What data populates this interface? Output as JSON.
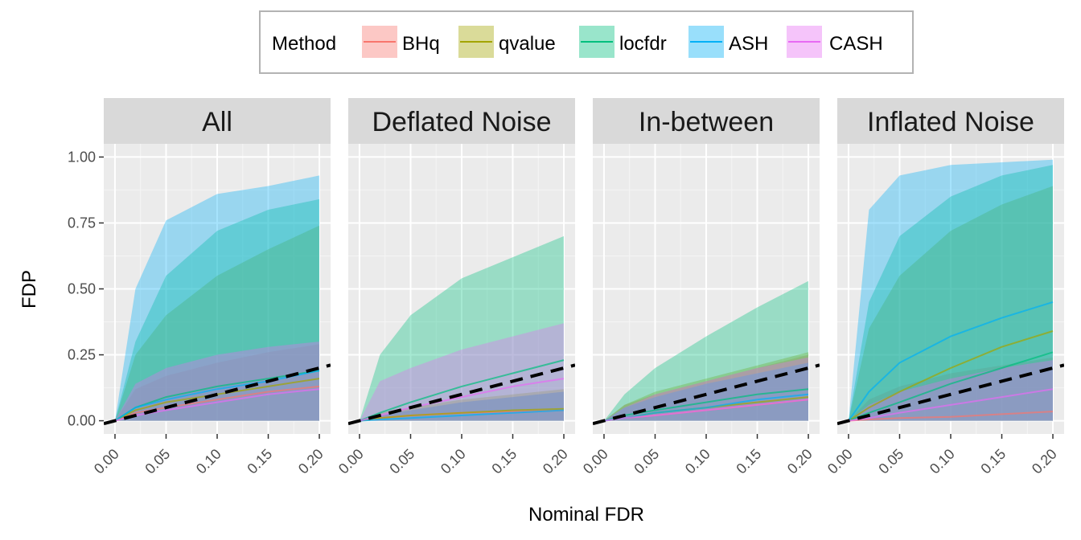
{
  "chart_data": {
    "type": "area",
    "xlabel": "Nominal FDR",
    "ylabel": "FDP",
    "xlim": [
      0,
      0.2
    ],
    "ylim": [
      0,
      1
    ],
    "x_ticks": [
      "0.00",
      "0.05",
      "0.10",
      "0.15",
      "0.20"
    ],
    "y_ticks": [
      "0.00",
      "0.25",
      "0.50",
      "0.75",
      "1.00"
    ],
    "legend": {
      "title": "Method",
      "position": "top",
      "entries": [
        {
          "name": "BHq",
          "color": "#F8766D"
        },
        {
          "name": "qvalue",
          "color": "#A3A500"
        },
        {
          "name": "locfdr",
          "color": "#00BF7D"
        },
        {
          "name": "ASH",
          "color": "#00B0F6"
        },
        {
          "name": "CASH",
          "color": "#E76BF3"
        }
      ]
    },
    "reference_line": {
      "slope": 1,
      "intercept": 0,
      "style": "dashed",
      "color": "#000000"
    },
    "panels": [
      {
        "title": "All",
        "x": [
          0,
          0.02,
          0.05,
          0.1,
          0.15,
          0.2
        ],
        "series": [
          {
            "name": "BHq",
            "mean": [
              0,
              0.03,
              0.05,
              0.08,
              0.11,
              0.13
            ],
            "lower": [
              0,
              0,
              0,
              0,
              0,
              0
            ],
            "upper": [
              0,
              0.12,
              0.17,
              0.22,
              0.26,
              0.29
            ]
          },
          {
            "name": "qvalue",
            "mean": [
              0,
              0.04,
              0.07,
              0.1,
              0.13,
              0.16
            ],
            "lower": [
              0,
              0,
              0,
              0,
              0,
              0
            ],
            "upper": [
              0,
              0.25,
              0.4,
              0.55,
              0.65,
              0.74
            ]
          },
          {
            "name": "locfdr",
            "mean": [
              0,
              0.05,
              0.09,
              0.13,
              0.16,
              0.19
            ],
            "lower": [
              0,
              0,
              0,
              0,
              0,
              0
            ],
            "upper": [
              0,
              0.3,
              0.55,
              0.72,
              0.8,
              0.84
            ]
          },
          {
            "name": "ASH",
            "mean": [
              0,
              0.05,
              0.08,
              0.12,
              0.15,
              0.19
            ],
            "lower": [
              0,
              0,
              0,
              0,
              0,
              0
            ],
            "upper": [
              0,
              0.5,
              0.76,
              0.86,
              0.89,
              0.93
            ]
          },
          {
            "name": "CASH",
            "mean": [
              0,
              0.02,
              0.04,
              0.07,
              0.1,
              0.12
            ],
            "lower": [
              0,
              0,
              0,
              0,
              0,
              0
            ],
            "upper": [
              0,
              0.14,
              0.2,
              0.25,
              0.28,
              0.3
            ]
          }
        ]
      },
      {
        "title": "Deflated Noise",
        "x": [
          0,
          0.02,
          0.05,
          0.1,
          0.15,
          0.2
        ],
        "series": [
          {
            "name": "BHq",
            "mean": [
              0,
              0.01,
              0.02,
              0.03,
              0.035,
              0.04
            ],
            "lower": [
              0,
              0,
              0,
              0,
              0,
              0
            ],
            "upper": [
              0,
              0.02,
              0.04,
              0.07,
              0.09,
              0.11
            ]
          },
          {
            "name": "qvalue",
            "mean": [
              0,
              0.01,
              0.02,
              0.03,
              0.04,
              0.045
            ],
            "lower": [
              0,
              0,
              0,
              0,
              0,
              0
            ],
            "upper": [
              0,
              0.03,
              0.05,
              0.08,
              0.1,
              0.12
            ]
          },
          {
            "name": "locfdr",
            "mean": [
              0,
              0.03,
              0.07,
              0.13,
              0.18,
              0.23
            ],
            "lower": [
              0,
              0,
              0,
              0,
              0,
              0
            ],
            "upper": [
              0,
              0.25,
              0.4,
              0.54,
              0.62,
              0.7
            ]
          },
          {
            "name": "ASH",
            "mean": [
              0,
              0.005,
              0.01,
              0.02,
              0.03,
              0.04
            ],
            "lower": [
              0,
              0,
              0,
              0,
              0,
              0
            ],
            "upper": [
              0,
              0.02,
              0.04,
              0.07,
              0.09,
              0.11
            ]
          },
          {
            "name": "CASH",
            "mean": [
              0,
              0.02,
              0.05,
              0.09,
              0.13,
              0.16
            ],
            "lower": [
              0,
              0,
              0,
              0,
              0,
              0
            ],
            "upper": [
              0,
              0.15,
              0.2,
              0.27,
              0.32,
              0.37
            ]
          }
        ]
      },
      {
        "title": "In-between",
        "x": [
          0,
          0.02,
          0.05,
          0.1,
          0.15,
          0.2
        ],
        "series": [
          {
            "name": "BHq",
            "mean": [
              0,
              0.01,
              0.02,
              0.04,
              0.06,
              0.08
            ],
            "lower": [
              0,
              0,
              0,
              0,
              0,
              0
            ],
            "upper": [
              0,
              0.06,
              0.1,
              0.15,
              0.2,
              0.25
            ]
          },
          {
            "name": "qvalue",
            "mean": [
              0,
              0.01,
              0.03,
              0.05,
              0.07,
              0.09
            ],
            "lower": [
              0,
              0,
              0,
              0,
              0,
              0
            ],
            "upper": [
              0,
              0.06,
              0.11,
              0.16,
              0.21,
              0.26
            ]
          },
          {
            "name": "locfdr",
            "mean": [
              0,
              0.02,
              0.04,
              0.07,
              0.1,
              0.12
            ],
            "lower": [
              0,
              0,
              0,
              0,
              0,
              0
            ],
            "upper": [
              0,
              0.1,
              0.2,
              0.32,
              0.43,
              0.53
            ]
          },
          {
            "name": "ASH",
            "mean": [
              0,
              0.01,
              0.03,
              0.05,
              0.08,
              0.1
            ],
            "lower": [
              0,
              0,
              0,
              0,
              0,
              0
            ],
            "upper": [
              0,
              0.05,
              0.09,
              0.14,
              0.18,
              0.22
            ]
          },
          {
            "name": "CASH",
            "mean": [
              0,
              0.01,
              0.02,
              0.04,
              0.06,
              0.08
            ],
            "lower": [
              0,
              0,
              0,
              0,
              0,
              0
            ],
            "upper": [
              0,
              0.05,
              0.1,
              0.15,
              0.2,
              0.24
            ]
          }
        ]
      },
      {
        "title": "Inflated Noise",
        "x": [
          0,
          0.02,
          0.05,
          0.1,
          0.15,
          0.2
        ],
        "series": [
          {
            "name": "BHq",
            "mean": [
              0,
              0.005,
              0.01,
              0.015,
              0.025,
              0.035
            ],
            "lower": [
              0,
              0,
              0,
              0,
              0,
              0
            ],
            "upper": [
              0,
              0.08,
              0.13,
              0.18,
              0.21,
              0.24
            ]
          },
          {
            "name": "qvalue",
            "mean": [
              0,
              0.05,
              0.11,
              0.2,
              0.28,
              0.34
            ],
            "lower": [
              0,
              0,
              0,
              0,
              0,
              0
            ],
            "upper": [
              0,
              0.35,
              0.55,
              0.72,
              0.82,
              0.89
            ]
          },
          {
            "name": "locfdr",
            "mean": [
              0,
              0.03,
              0.07,
              0.14,
              0.2,
              0.26
            ],
            "lower": [
              0,
              0,
              0,
              0,
              0,
              0
            ],
            "upper": [
              0,
              0.45,
              0.7,
              0.85,
              0.93,
              0.97
            ]
          },
          {
            "name": "ASH",
            "mean": [
              0,
              0.11,
              0.22,
              0.32,
              0.39,
              0.45
            ],
            "lower": [
              0,
              0,
              0,
              0,
              0,
              0
            ],
            "upper": [
              0,
              0.8,
              0.93,
              0.97,
              0.98,
              0.99
            ]
          },
          {
            "name": "CASH",
            "mean": [
              0,
              0.01,
              0.03,
              0.06,
              0.09,
              0.12
            ],
            "lower": [
              0,
              0,
              0,
              0,
              0,
              0
            ],
            "upper": [
              0,
              0.06,
              0.11,
              0.16,
              0.2,
              0.23
            ]
          }
        ]
      }
    ]
  }
}
